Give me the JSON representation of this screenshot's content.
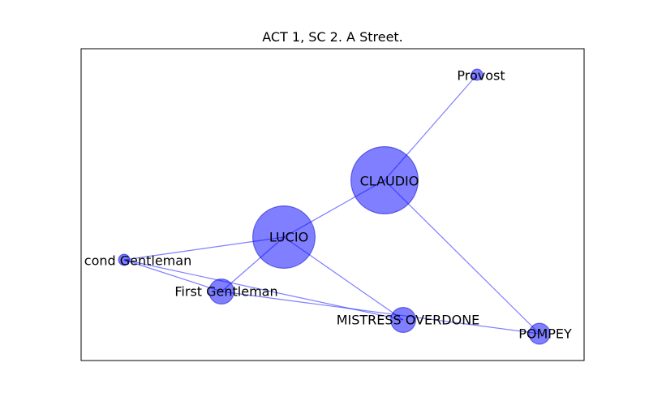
{
  "title": "ACT 1, SC 2. A Street.",
  "colors": {
    "node_fill": "#0000ff",
    "node_stroke": "#0000cc",
    "edge": "#0000ff"
  },
  "nodes": [
    {
      "id": "provost",
      "label": "Provost",
      "weight": 1
    },
    {
      "id": "claudio",
      "label": "CLAUDIO",
      "weight": 36
    },
    {
      "id": "lucio",
      "label": "LUCIO",
      "weight": 31
    },
    {
      "id": "second-gentleman",
      "label": "cond Gentleman",
      "weight": 1
    },
    {
      "id": "first-gentleman",
      "label": "First Gentleman",
      "weight": 5
    },
    {
      "id": "mistress-overdone",
      "label": "MISTRESS OVERDONE",
      "weight": 5
    },
    {
      "id": "pompey",
      "label": "POMPEY",
      "weight": 3.5
    }
  ],
  "edges": [
    {
      "source": "claudio",
      "target": "provost"
    },
    {
      "source": "claudio",
      "target": "lucio"
    },
    {
      "source": "claudio",
      "target": "pompey"
    },
    {
      "source": "lucio",
      "target": "second-gentleman"
    },
    {
      "source": "lucio",
      "target": "first-gentleman"
    },
    {
      "source": "lucio",
      "target": "mistress-overdone"
    },
    {
      "source": "second-gentleman",
      "target": "first-gentleman"
    },
    {
      "source": "second-gentleman",
      "target": "mistress-overdone"
    },
    {
      "source": "first-gentleman",
      "target": "pompey"
    }
  ]
}
